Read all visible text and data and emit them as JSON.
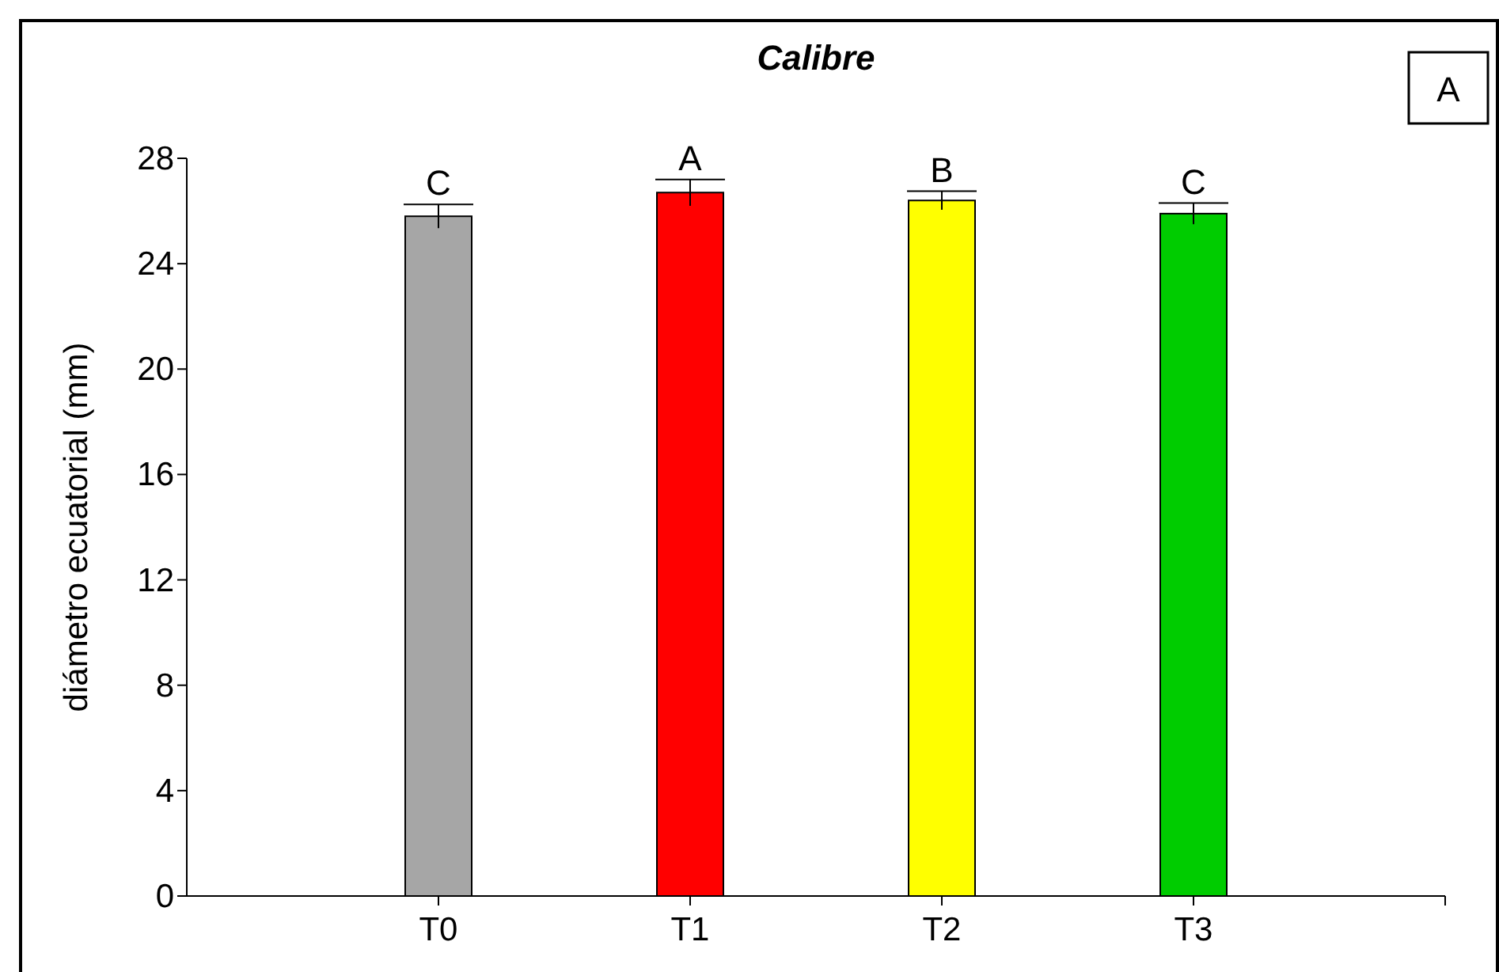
{
  "chart_data": {
    "type": "bar",
    "title": "Calibre",
    "ylabel": "diámetro ecuatorial (mm)",
    "categories": [
      "T0",
      "T1",
      "T2",
      "T3"
    ],
    "values": [
      25.8,
      26.7,
      26.4,
      25.9
    ],
    "colors": [
      "#a6a6a6",
      "#ff0000",
      "#ffff00",
      "#00cc00"
    ],
    "errors": [
      0.45,
      0.5,
      0.35,
      0.4
    ],
    "ylim": [
      0,
      28
    ],
    "yticks": [
      0,
      4,
      8,
      12,
      16,
      20,
      24,
      28
    ],
    "grid": false,
    "annotations": [
      {
        "text": "C",
        "x": "T0",
        "y": 26.25
      },
      {
        "text": "A",
        "x": "T1",
        "y": 27.2
      },
      {
        "text": "B",
        "x": "T2",
        "y": 26.75
      },
      {
        "text": "C",
        "x": "T3",
        "y": 26.3
      },
      "A"
    ]
  }
}
